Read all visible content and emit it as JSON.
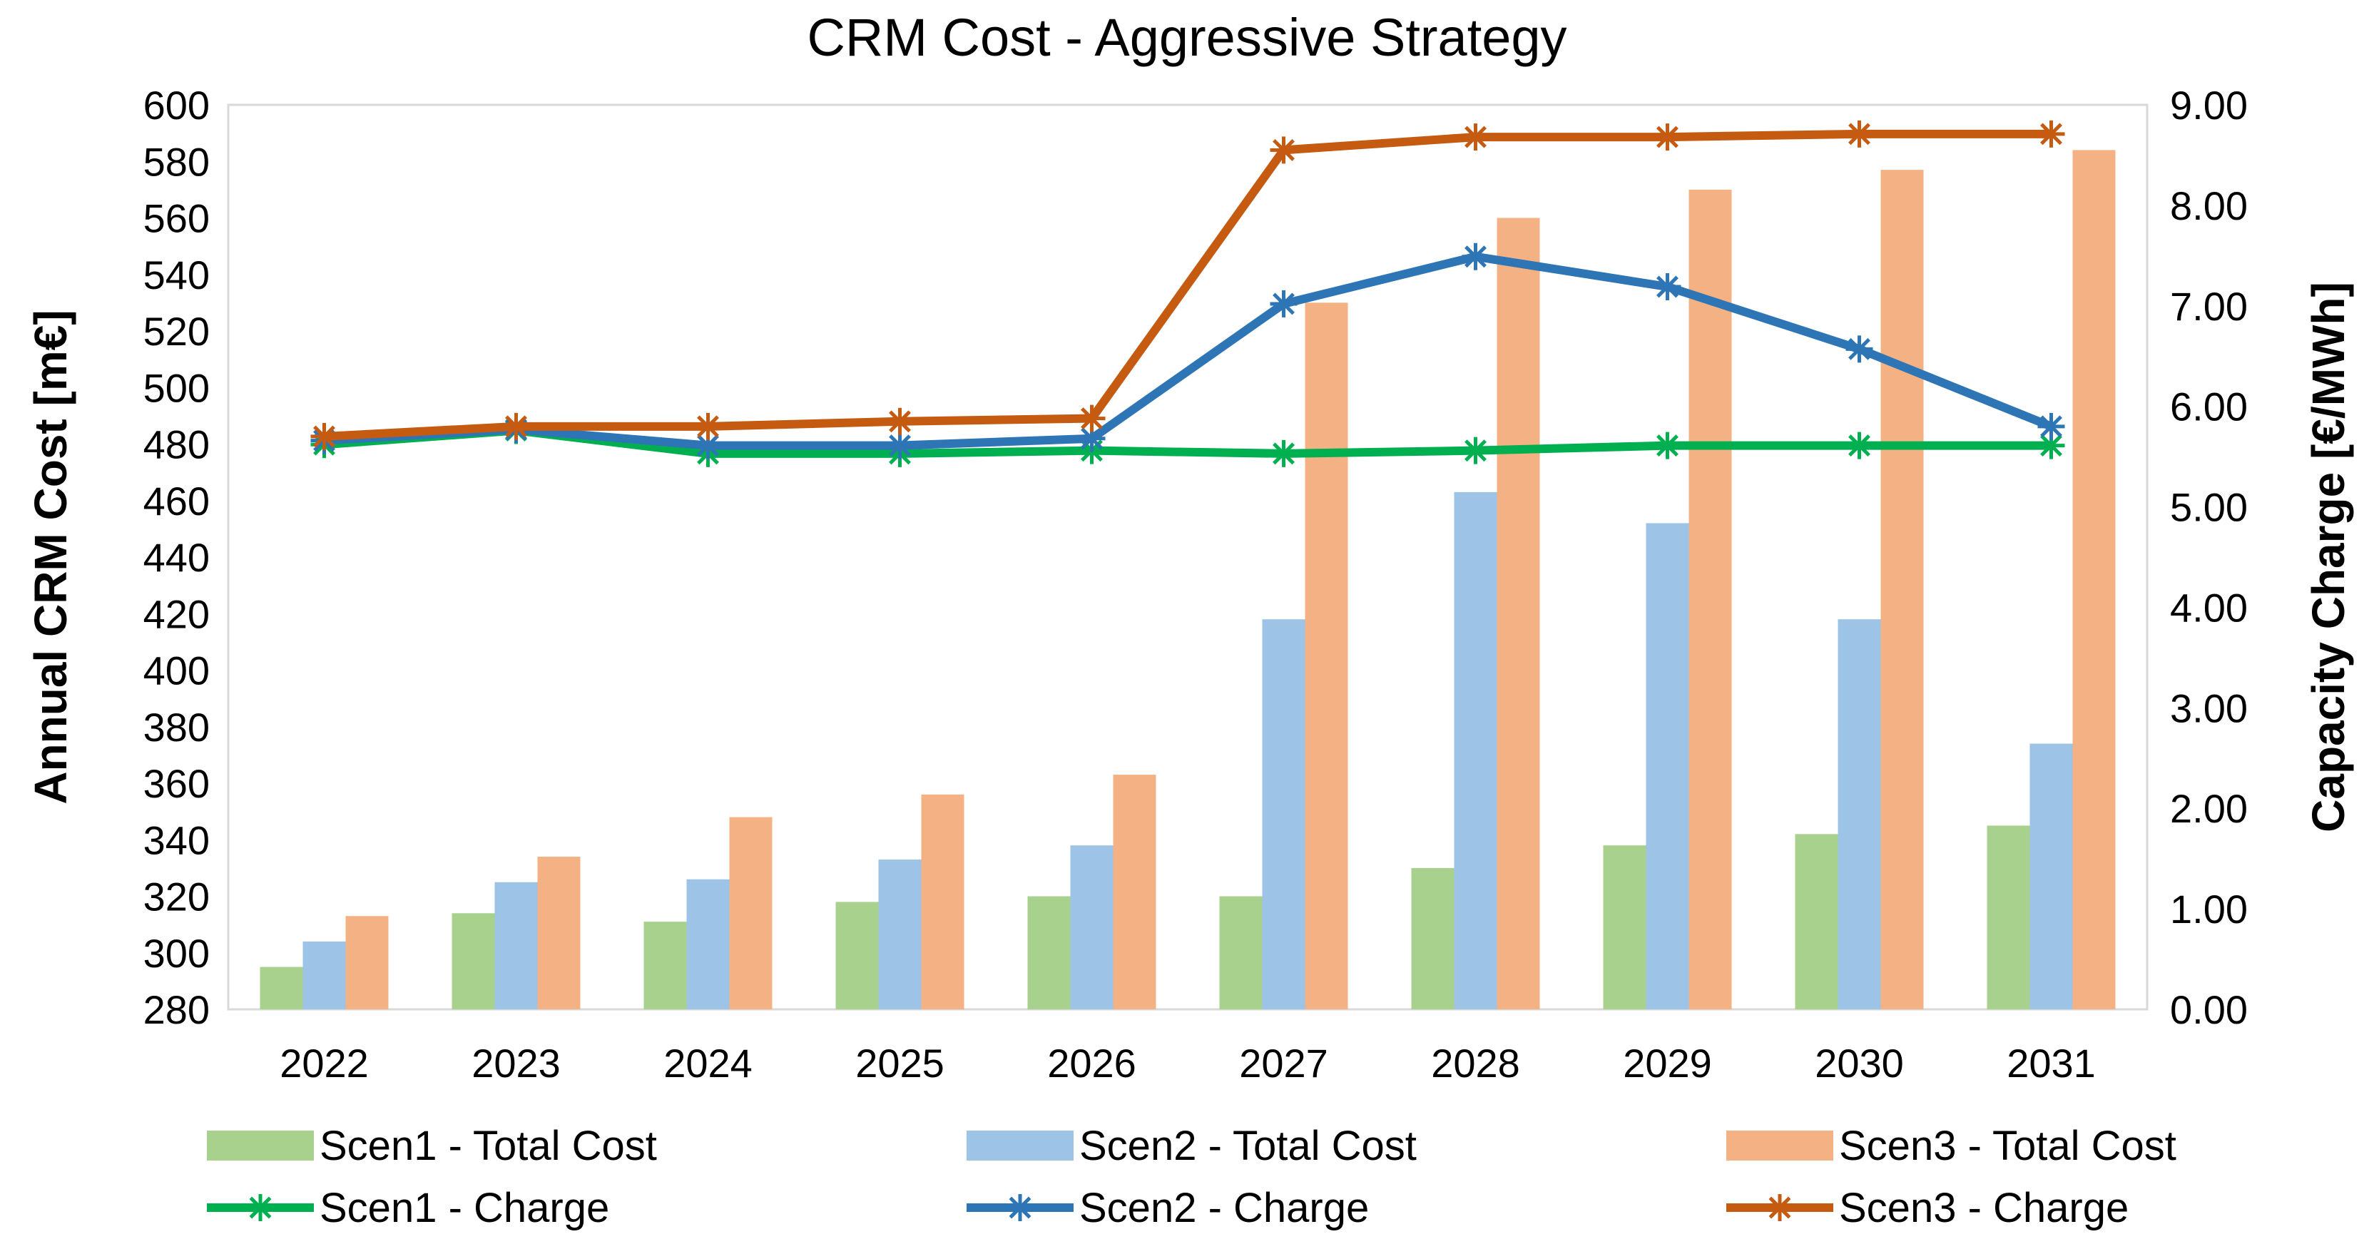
{
  "chart_data": {
    "type": "bar",
    "title": "CRM Cost  - Aggressive Strategy",
    "ylabel": "Annual CRM Cost [m€]",
    "y2label": "Capacity Charge [€/MWh]",
    "ylim": [
      280,
      600
    ],
    "y2lim": [
      0,
      9
    ],
    "y_ticks": [
      "280",
      "300",
      "320",
      "340",
      "360",
      "380",
      "400",
      "420",
      "440",
      "460",
      "480",
      "500",
      "520",
      "540",
      "560",
      "580",
      "600"
    ],
    "y2_ticks": [
      "0.00",
      "1.00",
      "2.00",
      "3.00",
      "4.00",
      "5.00",
      "6.00",
      "7.00",
      "8.00",
      "9.00"
    ],
    "categories": [
      "2022",
      "2023",
      "2024",
      "2025",
      "2026",
      "2027",
      "2028",
      "2029",
      "2030",
      "2031"
    ],
    "bar_series": [
      {
        "name": "Scen1 - Total Cost",
        "color": "#a9d18e",
        "values": [
          295,
          314,
          311,
          318,
          320,
          320,
          330,
          338,
          342,
          345
        ]
      },
      {
        "name": "Scen2 - Total Cost",
        "color": "#9dc3e6",
        "values": [
          304,
          325,
          326,
          333,
          338,
          418,
          463,
          452,
          418,
          374
        ]
      },
      {
        "name": "Scen3 - Total Cost",
        "color": "#f4b183",
        "values": [
          313,
          334,
          348,
          356,
          363,
          530,
          560,
          570,
          577,
          584
        ]
      }
    ],
    "line_series": [
      {
        "name": "Scen1 - Charge",
        "color": "#00b050",
        "values": [
          5.62,
          5.76,
          5.53,
          5.53,
          5.56,
          5.53,
          5.56,
          5.61,
          5.61,
          5.61
        ]
      },
      {
        "name": "Scen2 - Charge",
        "color": "#2e75b6",
        "values": [
          5.66,
          5.77,
          5.61,
          5.61,
          5.68,
          7.02,
          7.49,
          7.19,
          6.57,
          5.8
        ]
      },
      {
        "name": "Scen3 - Charge",
        "color": "#c55a11",
        "values": [
          5.7,
          5.8,
          5.8,
          5.85,
          5.88,
          8.55,
          8.68,
          8.68,
          8.71,
          8.71
        ]
      }
    ],
    "grid": false,
    "legend": "bottom"
  }
}
